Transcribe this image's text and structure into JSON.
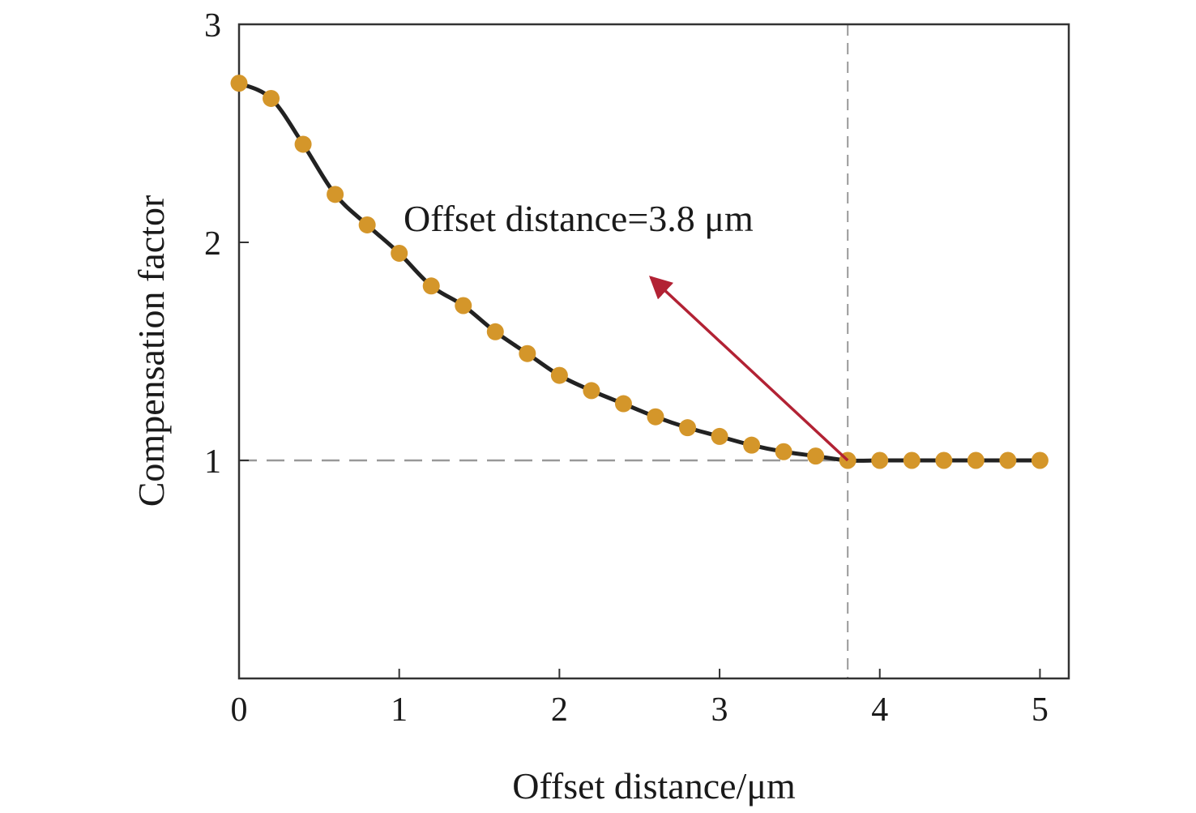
{
  "chart_data": {
    "type": "line",
    "title": "",
    "xlabel": "Offset distance/μm",
    "ylabel": "Compensation factor",
    "xlim": [
      0,
      5.18
    ],
    "ylim": [
      0,
      3
    ],
    "xticks": [
      "0",
      "1",
      "2",
      "3",
      "4",
      "5"
    ],
    "yticks": [
      "1",
      "2",
      "3"
    ],
    "grid": false,
    "series": [
      {
        "x": [
          0,
          0.2,
          0.4,
          0.6,
          0.8,
          1.0,
          1.2,
          1.4,
          1.6,
          1.8,
          2.0,
          2.2,
          2.4,
          2.6,
          2.8,
          3.0,
          3.2,
          3.4,
          3.6,
          3.8,
          4.0,
          4.2,
          4.4,
          4.6,
          4.8,
          5.0
        ],
        "y": [
          2.73,
          2.66,
          2.45,
          2.22,
          2.08,
          1.95,
          1.8,
          1.71,
          1.59,
          1.49,
          1.39,
          1.32,
          1.26,
          1.2,
          1.15,
          1.11,
          1.07,
          1.04,
          1.02,
          1.0,
          1.0,
          1.0,
          1.0,
          1.0,
          1.0,
          1.0
        ]
      }
    ],
    "reference_lines": {
      "x": 3.8,
      "y": 1.0
    },
    "annotation": {
      "text": "Offset distance=3.8 μm",
      "arrow_from": [
        3.8,
        1.0
      ],
      "arrow_to": [
        2.57,
        1.84
      ]
    },
    "colors": {
      "line": "#222222",
      "marker": "#d4962a",
      "reference": "#999999",
      "arrow": "#b22234",
      "axis": "#333333"
    }
  }
}
